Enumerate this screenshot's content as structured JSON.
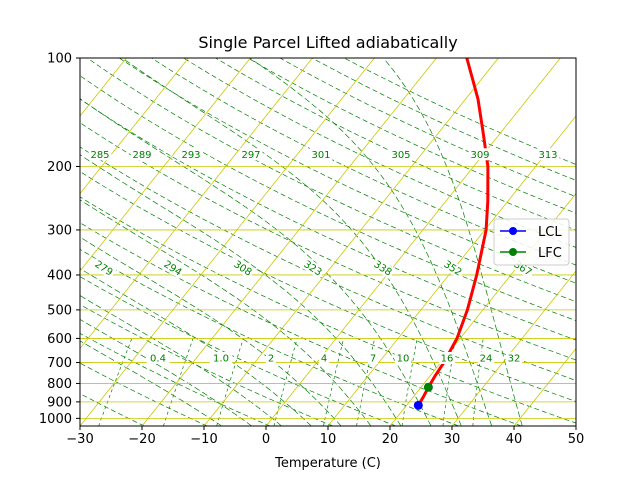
{
  "chart_data": {
    "type": "line",
    "title": "Single Parcel Lifted adiabatically",
    "xlabel": "Temperature (C)",
    "ylabel": "",
    "xlim": [
      -30,
      50
    ],
    "ylim": [
      1050,
      100
    ],
    "yscale": "log",
    "skew": true,
    "grid": true,
    "x_ticks": [
      -30,
      -20,
      -10,
      0,
      10,
      20,
      30,
      40,
      50
    ],
    "y_ticks": [
      100,
      200,
      300,
      400,
      500,
      600,
      700,
      800,
      900,
      1000
    ],
    "isobars": [
      100,
      200,
      300,
      400,
      500,
      600,
      700,
      800,
      900,
      1000
    ],
    "isotherms": [
      -100,
      -90,
      -80,
      -70,
      -60,
      -50,
      -40,
      -30,
      -20,
      -10,
      0,
      10,
      20,
      30,
      40,
      50
    ],
    "dry_adiabat_labels": [
      "285",
      "289",
      "293",
      "297",
      "301",
      "305",
      "309",
      "313"
    ],
    "moist_adiabat_labels": [
      "279",
      "294",
      "308",
      "323",
      "338",
      "352",
      "367"
    ],
    "mixing_ratio_labels": [
      "0.4",
      "1.0",
      "2",
      "4",
      "7",
      "10",
      "16",
      "24",
      "32"
    ],
    "parcel_profile": {
      "color": "#ff0000",
      "points": [
        {
          "p": 920,
          "t": 21.9
        },
        {
          "p": 870,
          "t": 21.6
        },
        {
          "p": 820,
          "t": 21.2
        },
        {
          "p": 760,
          "t": 20.8
        },
        {
          "p": 700,
          "t": 20.5
        },
        {
          "p": 600,
          "t": 19.5
        },
        {
          "p": 500,
          "t": 17.5
        },
        {
          "p": 400,
          "t": 14.5
        },
        {
          "p": 300,
          "t": 10.2
        },
        {
          "p": 250,
          "t": 6.8
        },
        {
          "p": 200,
          "t": 2.3
        },
        {
          "p": 160,
          "t": -3.0
        },
        {
          "p": 130,
          "t": -8.0
        },
        {
          "p": 115,
          "t": -11.3
        },
        {
          "p": 100,
          "t": -15.1
        }
      ]
    },
    "series": [
      {
        "name": "LCL",
        "color": "#0000ff",
        "points": [
          {
            "p": 920,
            "t": 21.9
          }
        ]
      },
      {
        "name": "LFC",
        "color": "#008000",
        "points": [
          {
            "p": 820,
            "t": 21.2
          }
        ]
      }
    ],
    "legend_position": "right"
  }
}
